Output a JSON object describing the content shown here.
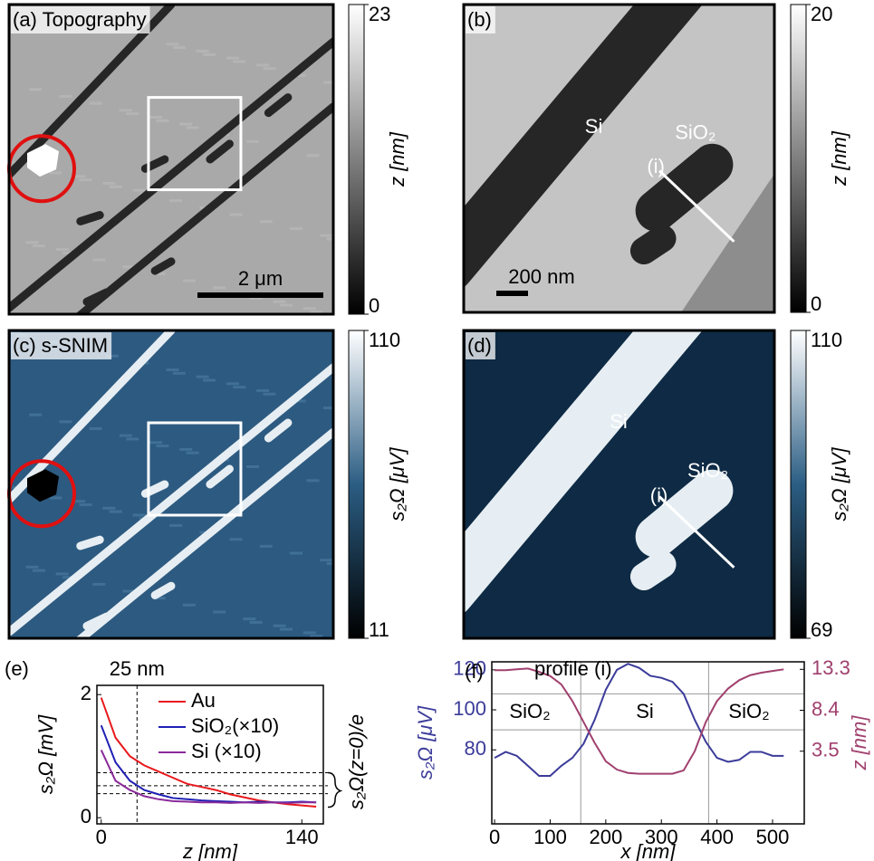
{
  "chart_data": [
    {
      "type": "image",
      "title": "(a) Topography",
      "colormap": [
        "#000000",
        "#ffffff"
      ],
      "clim": [
        0,
        23
      ],
      "cticks": [
        0,
        23
      ],
      "clabel": "z [nm]",
      "scalebar": "2 μm"
    },
    {
      "type": "image",
      "title": "(b)",
      "colormap": [
        "#000000",
        "#ffffff"
      ],
      "clim": [
        0,
        20
      ],
      "cticks": [
        0,
        20
      ],
      "clabel": "z [nm]",
      "scalebar": "200 nm",
      "annotations": [
        "Si",
        "SiO₂",
        "(i)"
      ]
    },
    {
      "type": "image",
      "title": "(c) s-SNIM",
      "colormap": [
        "#000000",
        "#2b5d83",
        "#ffffff"
      ],
      "clim": [
        11,
        110
      ],
      "cticks": [
        11,
        110
      ],
      "clabel": "s₂Ω [μV]"
    },
    {
      "type": "image",
      "title": "(d)",
      "colormap": [
        "#000000",
        "#2b5d83",
        "#ffffff"
      ],
      "clim": [
        69,
        110
      ],
      "cticks": [
        69,
        110
      ],
      "clabel": "s₂Ω [μV]",
      "annotations": [
        "Si",
        "SiO₂",
        "(i)"
      ]
    },
    {
      "type": "line",
      "title": "(e)",
      "annotation": "25 nm",
      "xlabel": "z [nm]",
      "ylabel": "s₂Ω [mV]",
      "right_label": "s₂Ω(z=0)/e",
      "x": [
        0,
        10,
        20,
        30,
        40,
        50,
        60,
        70,
        80,
        90,
        100,
        110,
        120,
        130,
        140,
        150
      ],
      "series": [
        {
          "name": "Au",
          "color": "#e8191c",
          "values": [
            1.95,
            1.3,
            1.0,
            0.85,
            0.75,
            0.65,
            0.55,
            0.5,
            0.45,
            0.38,
            0.33,
            0.28,
            0.25,
            0.22,
            0.2,
            0.18
          ]
        },
        {
          "name": "SiO₂(×10)",
          "color": "#1f1fb4",
          "values": [
            1.5,
            0.9,
            0.6,
            0.45,
            0.38,
            0.32,
            0.3,
            0.28,
            0.27,
            0.26,
            0.25,
            0.26,
            0.25,
            0.25,
            0.26,
            0.25
          ]
        },
        {
          "name": "Si (×10)",
          "color": "#8a2a9a",
          "values": [
            1.1,
            0.6,
            0.45,
            0.35,
            0.3,
            0.27,
            0.26,
            0.25,
            0.25,
            0.24,
            0.25,
            0.24,
            0.25,
            0.24,
            0.25,
            0.25
          ]
        }
      ],
      "xlim": [
        -3,
        155
      ],
      "xticks": [
        0,
        140
      ],
      "ylim": [
        -0.1,
        2.15
      ],
      "yticks": [
        0,
        2
      ],
      "vlines": [
        25
      ],
      "hlines": [
        0.73,
        0.52,
        0.39
      ]
    },
    {
      "type": "line",
      "title": "(f)",
      "subtitle": "profile (i)",
      "xlabel": "x [nm]",
      "ylabel": "s₂Ω [μV]",
      "y2label": "z [nm]",
      "annotations": [
        "SiO₂",
        "Si",
        "SiO₂"
      ],
      "x": [
        0,
        20,
        40,
        60,
        80,
        100,
        120,
        140,
        160,
        180,
        200,
        220,
        240,
        260,
        280,
        300,
        320,
        340,
        360,
        380,
        400,
        420,
        440,
        460,
        480,
        500,
        520
      ],
      "series": [
        {
          "color": "#3b3b9a",
          "values": [
            76,
            79,
            77,
            72,
            67,
            67,
            72,
            76,
            83,
            95,
            110,
            120,
            123,
            121,
            117,
            116,
            114,
            108,
            95,
            84,
            76,
            74,
            75,
            79,
            79,
            77,
            77
          ]
        },
        {
          "color": "#a0406e",
          "axis": "y2",
          "values": [
            13.2,
            13.2,
            13.3,
            13.4,
            13.0,
            12.5,
            11.5,
            9.5,
            7.0,
            4.5,
            2.3,
            1.3,
            0.9,
            0.8,
            0.8,
            0.8,
            0.8,
            1.2,
            3.5,
            7.0,
            9.5,
            11.0,
            12.0,
            12.6,
            12.9,
            13.1,
            13.3
          ]
        }
      ],
      "xlim": [
        -5,
        557
      ],
      "xticks": [
        0,
        100,
        200,
        300,
        400,
        500
      ],
      "ylim": [
        43,
        124
      ],
      "yticks": [
        80,
        100,
        120
      ],
      "y2lim": [
        -5.2,
        14.2
      ],
      "y2ticks": [
        3.5,
        8.4,
        13.3
      ],
      "vlines": [
        155,
        385
      ],
      "hlines": [
        108,
        90
      ]
    }
  ]
}
